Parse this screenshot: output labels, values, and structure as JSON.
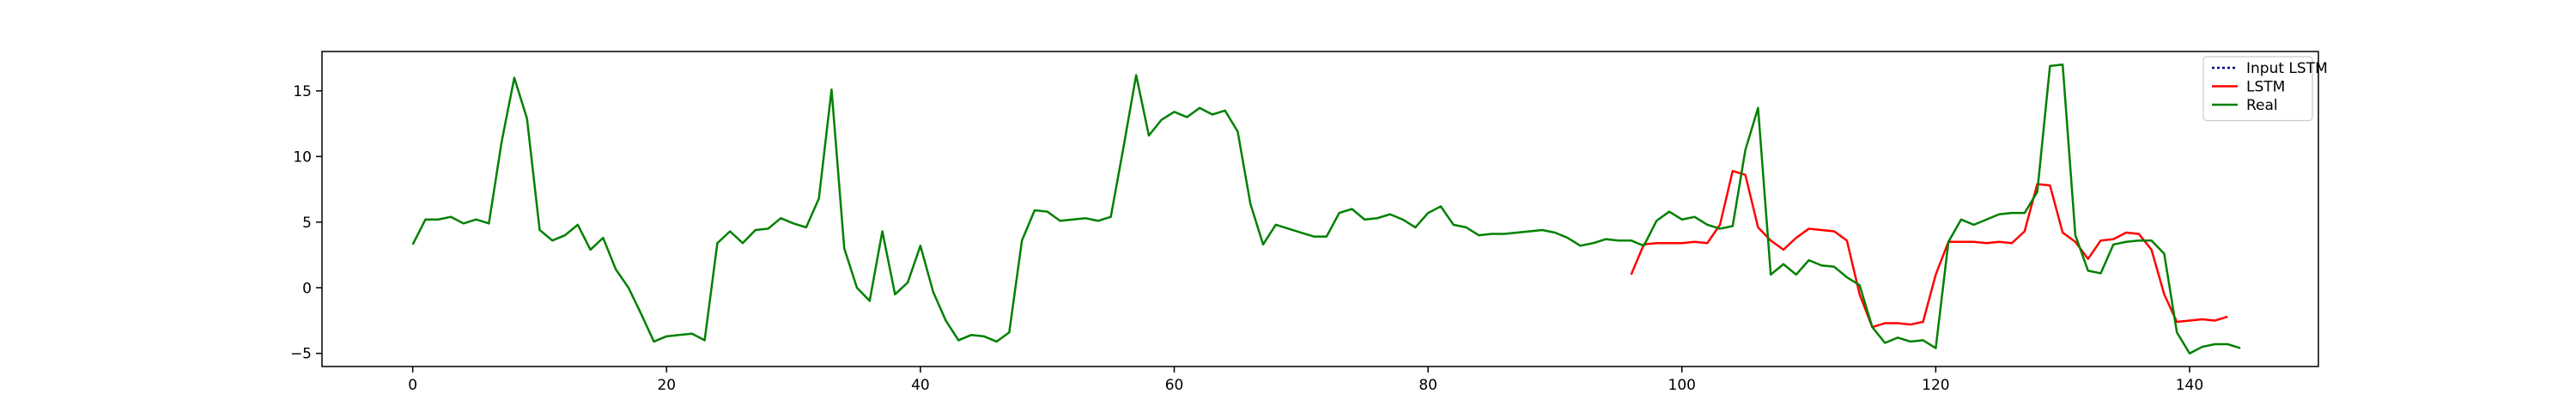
{
  "chart_data": {
    "type": "line",
    "title": "",
    "xlabel": "",
    "ylabel": "",
    "xlim": [
      -7.15,
      150.15
    ],
    "ylim": [
      -6.0,
      18.0
    ],
    "xticks": [
      0,
      20,
      40,
      60,
      80,
      100,
      120,
      140
    ],
    "yticks": [
      -5,
      0,
      5,
      10,
      15
    ],
    "grid": false,
    "legend_position": "top-right",
    "series": [
      {
        "name": "Input LSTM",
        "color": "#000080",
        "style": "dotted",
        "x_start": 0,
        "values": []
      },
      {
        "name": "LSTM",
        "color": "#ff0000",
        "style": "solid",
        "x_start": 96,
        "values": [
          1.0,
          3.3,
          3.4,
          3.4,
          3.4,
          3.5,
          3.4,
          4.8,
          8.9,
          8.6,
          4.6,
          3.6,
          2.9,
          3.8,
          4.5,
          4.4,
          4.3,
          3.6,
          -0.5,
          -3.0,
          -2.7,
          -2.7,
          -2.8,
          -2.6,
          1.0,
          3.5,
          3.5,
          3.5,
          3.4,
          3.5,
          3.4,
          4.3,
          7.9,
          7.8,
          4.2,
          3.5,
          2.2,
          3.6,
          3.7,
          4.2,
          4.1,
          2.9,
          -0.5,
          -2.6,
          -2.5,
          -2.4,
          -2.5,
          -2.2
        ]
      },
      {
        "name": "Real",
        "color": "#008000",
        "style": "solid",
        "x_start": 0,
        "values": [
          3.3,
          5.2,
          5.2,
          5.4,
          4.9,
          5.2,
          4.9,
          11.1,
          16.0,
          12.9,
          4.4,
          3.6,
          4.0,
          4.8,
          2.9,
          3.8,
          1.4,
          0.0,
          -2.0,
          -4.1,
          -3.7,
          -3.6,
          -3.5,
          -4.0,
          3.4,
          4.3,
          3.4,
          4.4,
          4.5,
          5.3,
          4.9,
          4.6,
          6.8,
          15.1,
          3.0,
          0.0,
          -1.0,
          4.3,
          -0.5,
          0.4,
          3.2,
          -0.3,
          -2.5,
          -4.0,
          -3.6,
          -3.7,
          -4.1,
          -3.4,
          3.6,
          5.9,
          5.8,
          5.1,
          5.2,
          5.3,
          5.1,
          5.4,
          10.7,
          16.2,
          11.6,
          12.8,
          13.4,
          13.0,
          13.7,
          13.2,
          13.5,
          11.9,
          6.4,
          3.3,
          4.8,
          4.5,
          4.2,
          3.9,
          3.9,
          5.7,
          6.0,
          5.2,
          5.3,
          5.6,
          5.2,
          4.6,
          5.7,
          6.2,
          4.8,
          4.6,
          4.0,
          4.1,
          4.1,
          4.2,
          4.3,
          4.4,
          4.2,
          3.8,
          3.2,
          3.4,
          3.7,
          3.6,
          3.6,
          3.2,
          5.1,
          5.8,
          5.2,
          5.4,
          4.8,
          4.5,
          4.7,
          10.5,
          13.7,
          1.0,
          1.8,
          1.0,
          2.1,
          1.7,
          1.6,
          0.8,
          0.2,
          -3.0,
          -4.2,
          -3.8,
          -4.1,
          -4.0,
          -4.6,
          3.5,
          5.2,
          4.8,
          5.2,
          5.6,
          5.7,
          5.7,
          7.3,
          16.9,
          17.0,
          4.0,
          1.3,
          1.1,
          3.3,
          3.5,
          3.6,
          3.6,
          2.6,
          -3.4,
          -5.0,
          -4.5,
          -4.3,
          -4.3,
          -4.6
        ]
      }
    ]
  }
}
